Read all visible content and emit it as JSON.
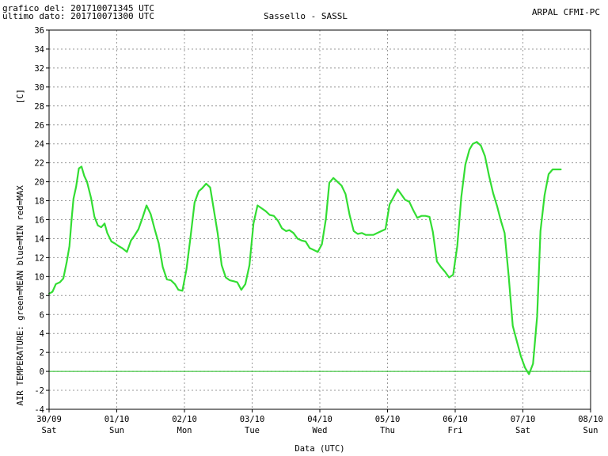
{
  "header": {
    "line1": "grafico del: 201710071345 UTC",
    "line2": "ultimo dato: 201710071300 UTC",
    "title": "Sassello - SASSL",
    "org": "ARPAL CFMI-PC"
  },
  "chart_data": {
    "type": "line",
    "title": "Sassello - SASSL",
    "xlabel": "Data (UTC)",
    "ylabel": "AIR TEMPERATURE: green=MEAN  blue=MIN  red=MAX",
    "yunit": "[C]",
    "ylim": [
      -4,
      36
    ],
    "yticks": [
      -4,
      -2,
      0,
      2,
      4,
      6,
      8,
      10,
      12,
      14,
      16,
      18,
      20,
      22,
      24,
      26,
      28,
      30,
      32,
      34,
      36
    ],
    "xlim_days": [
      0,
      8
    ],
    "xticks": [
      {
        "date": "30/09",
        "day": "Sat"
      },
      {
        "date": "01/10",
        "day": "Sun"
      },
      {
        "date": "02/10",
        "day": "Mon"
      },
      {
        "date": "03/10",
        "day": "Tue"
      },
      {
        "date": "04/10",
        "day": "Wed"
      },
      {
        "date": "05/10",
        "day": "Thu"
      },
      {
        "date": "06/10",
        "day": "Fri"
      },
      {
        "date": "07/10",
        "day": "Sat"
      },
      {
        "date": "08/10",
        "day": "Sun"
      }
    ],
    "grid": true,
    "zero_line": true,
    "colors": {
      "mean": "#33dd33",
      "zero": "#22bb22",
      "grid": "#999999"
    },
    "series": [
      {
        "name": "MEAN",
        "color": "#33dd33",
        "x": [
          0.0,
          0.05,
          0.1,
          0.16,
          0.21,
          0.26,
          0.3,
          0.33,
          0.36,
          0.4,
          0.44,
          0.48,
          0.52,
          0.56,
          0.62,
          0.67,
          0.72,
          0.77,
          0.82,
          0.86,
          0.92,
          0.97,
          1.03,
          1.08,
          1.15,
          1.21,
          1.26,
          1.32,
          1.38,
          1.44,
          1.5,
          1.56,
          1.62,
          1.68,
          1.74,
          1.8,
          1.86,
          1.91,
          1.97,
          2.03,
          2.09,
          2.15,
          2.21,
          2.26,
          2.32,
          2.38,
          2.43,
          2.49,
          2.55,
          2.61,
          2.67,
          2.73,
          2.78,
          2.84,
          2.9,
          2.96,
          3.02,
          3.08,
          3.14,
          3.2,
          3.26,
          3.32,
          3.38,
          3.44,
          3.5,
          3.55,
          3.61,
          3.67,
          3.73,
          3.79,
          3.85,
          3.91,
          3.97,
          4.03,
          4.09,
          4.14,
          4.2,
          4.26,
          4.32,
          4.38,
          4.44,
          4.5,
          4.56,
          4.62,
          4.68,
          4.73,
          4.79,
          4.85,
          4.91,
          4.97,
          5.03,
          5.09,
          5.15,
          5.21,
          5.26,
          5.32,
          5.38,
          5.44,
          5.5,
          5.56,
          5.62,
          5.67,
          5.73,
          5.79,
          5.85,
          5.91,
          5.97,
          6.03,
          6.09,
          6.15,
          6.21,
          6.26,
          6.32,
          6.38,
          6.44,
          6.5,
          6.56,
          6.62,
          6.67,
          6.73,
          6.79,
          6.85,
          6.91,
          6.97,
          7.03,
          7.09,
          7.15,
          7.21,
          7.26,
          7.32,
          7.38,
          7.44,
          7.5,
          7.56
        ],
        "values": [
          8.2,
          8.4,
          9.2,
          9.4,
          9.8,
          11.5,
          13.2,
          15.8,
          18.2,
          19.5,
          21.4,
          21.6,
          20.6,
          20.0,
          18.3,
          16.3,
          15.4,
          15.2,
          15.6,
          14.6,
          13.7,
          13.5,
          13.2,
          13.0,
          12.6,
          13.8,
          14.3,
          15.0,
          16.2,
          17.5,
          16.6,
          15.0,
          13.5,
          11.0,
          9.7,
          9.6,
          9.2,
          8.6,
          8.5,
          10.8,
          14.2,
          17.8,
          19.0,
          19.3,
          19.8,
          19.4,
          17.2,
          14.6,
          11.2,
          9.9,
          9.6,
          9.5,
          9.4,
          8.6,
          9.2,
          11.2,
          15.6,
          17.5,
          17.2,
          16.9,
          16.5,
          16.4,
          15.9,
          15.1,
          14.8,
          14.9,
          14.6,
          14.0,
          13.8,
          13.7,
          13.0,
          12.8,
          12.6,
          13.4,
          16.1,
          19.9,
          20.4,
          20.0,
          19.6,
          18.7,
          16.5,
          14.8,
          14.5,
          14.6,
          14.4,
          14.4,
          14.4,
          14.6,
          14.8,
          15.0,
          17.6,
          18.4,
          19.2,
          18.6,
          18.1,
          17.9,
          17.0,
          16.2,
          16.4,
          16.4,
          16.3,
          14.7,
          11.6,
          11.0,
          10.5,
          9.9,
          10.2,
          13.2,
          18.4,
          21.8,
          23.4,
          24.0,
          24.2,
          23.8,
          22.7,
          20.6,
          18.8,
          17.4,
          16.0,
          14.6,
          10.1,
          4.8,
          3.2,
          1.6,
          0.4,
          -0.3,
          0.8,
          5.8,
          14.8,
          18.6,
          20.8,
          21.3,
          21.3,
          21.3
        ]
      }
    ]
  }
}
